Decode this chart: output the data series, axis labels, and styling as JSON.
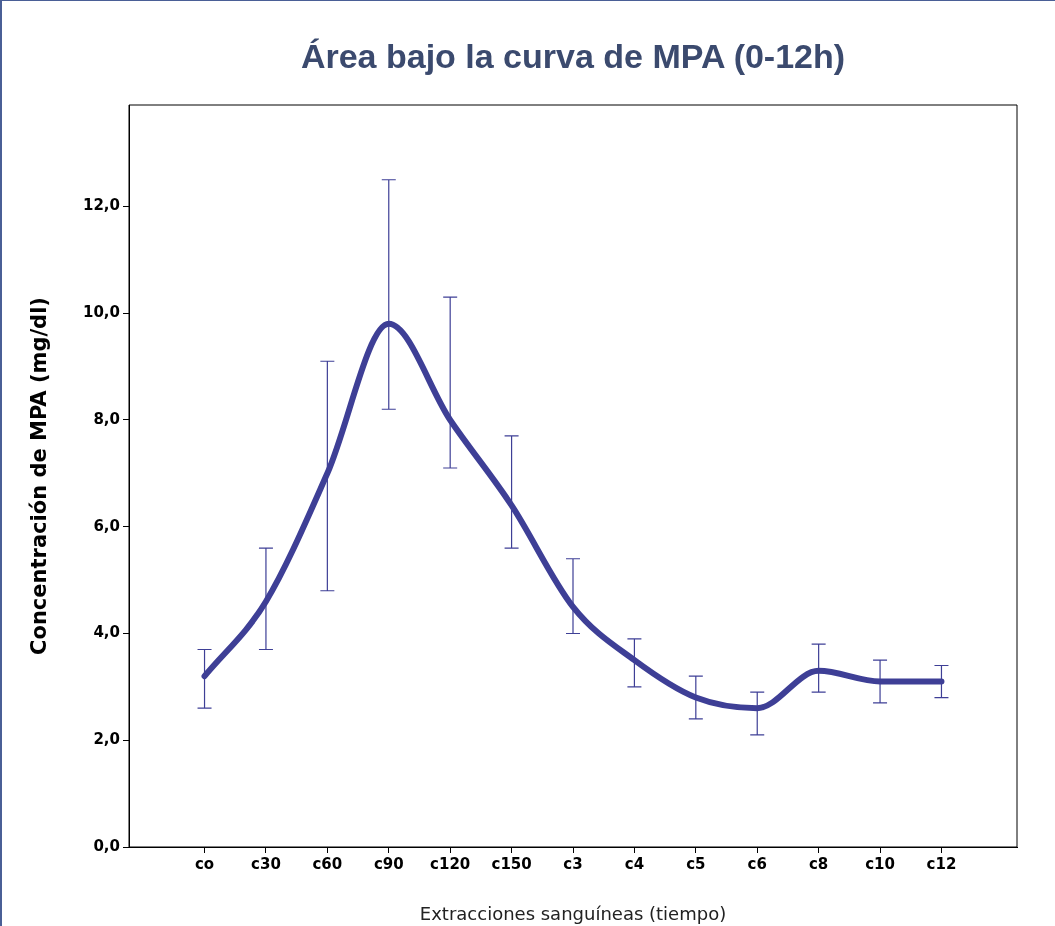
{
  "chart_data": {
    "type": "line",
    "title": "Área bajo la curva de MPA (0-12h)",
    "xlabel": "Extracciones sanguíneas (tiempo)",
    "ylabel": "Concentración de MPA (mg/dl)",
    "categories": [
      "co",
      "c30",
      "c60",
      "c90",
      "c120",
      "c150",
      "c3",
      "c4",
      "c5",
      "c6",
      "c8",
      "c10",
      "c12"
    ],
    "series": [
      {
        "color": "#3e3f96",
        "values": [
          3.2,
          4.6,
          7.0,
          9.8,
          8.0,
          6.4,
          4.5,
          3.5,
          2.8,
          2.6,
          3.3,
          3.1,
          3.1
        ],
        "errors": [
          [
            2.6,
            3.7
          ],
          [
            3.7,
            5.6
          ],
          [
            4.8,
            9.1
          ],
          [
            8.2,
            12.5
          ],
          [
            7.1,
            10.3
          ],
          [
            5.6,
            7.7
          ],
          [
            4.0,
            5.4
          ],
          [
            3.0,
            3.9
          ],
          [
            2.4,
            3.2
          ],
          [
            2.1,
            2.9
          ],
          [
            2.9,
            3.8
          ],
          [
            2.7,
            3.5
          ],
          [
            2.8,
            3.4
          ]
        ]
      }
    ],
    "ylim": [
      0,
      13.9
    ],
    "yticks": [
      {
        "value": 0,
        "label": "0,0"
      },
      {
        "value": 2,
        "label": "2,0"
      },
      {
        "value": 4,
        "label": "4,0"
      },
      {
        "value": 6,
        "label": "6,0"
      },
      {
        "value": 8,
        "label": "8,0"
      },
      {
        "value": 10,
        "label": "10,0"
      },
      {
        "value": 12,
        "label": "12,0"
      }
    ],
    "marker": "none",
    "line_style": "solid",
    "legend": false,
    "grid": false
  }
}
